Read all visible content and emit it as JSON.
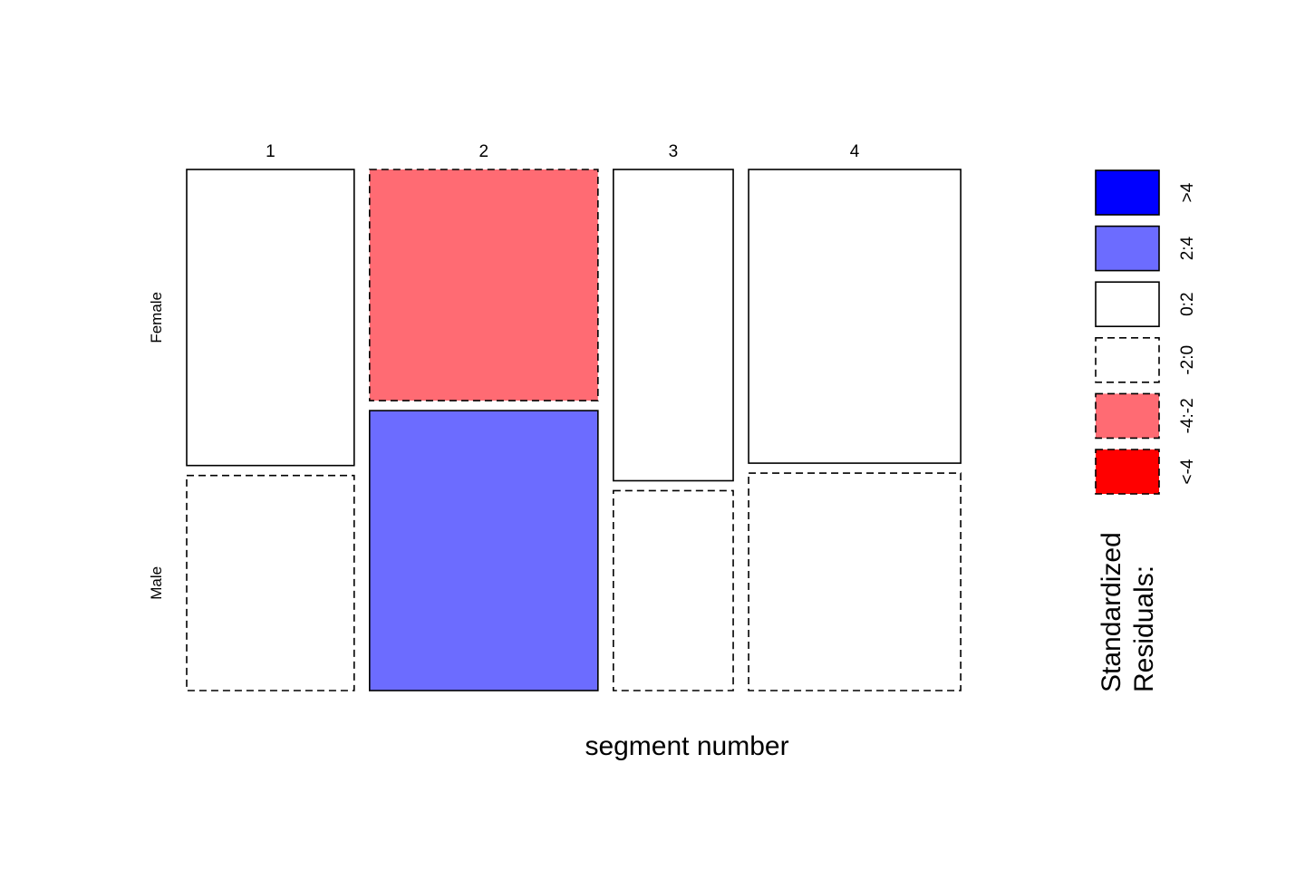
{
  "chart_data": {
    "type": "mosaic",
    "xlabel": "segment number",
    "categories": [
      "1",
      "2",
      "3",
      "4"
    ],
    "rows": [
      "Female",
      "Male"
    ],
    "column_proportions": [
      0.2169,
      0.2958,
      0.1552,
      0.2747
    ],
    "female_share": [
      0.5792,
      0.4523,
      0.609,
      0.5746
    ],
    "residual_class": [
      [
        "0:2",
        "-2:0"
      ],
      [
        "-4:-2",
        "2:4"
      ],
      [
        "0:2",
        "-2:0"
      ],
      [
        "0:2",
        "-2:0"
      ]
    ],
    "legend": {
      "title_line1": "Standardized",
      "title_line2": "Residuals:",
      "items": [
        {
          "label": ">4",
          "color": "#0000ff",
          "dashed": false
        },
        {
          "label": "2:4",
          "color": "#6c6cff",
          "dashed": false
        },
        {
          "label": "0:2",
          "color": "#ffffff",
          "dashed": false
        },
        {
          "label": "-2:0",
          "color": "#ffffff",
          "dashed": true
        },
        {
          "label": "-4:-2",
          "color": "#ff6b73",
          "dashed": true
        },
        {
          "label": "<-4",
          "color": "#ff0000",
          "dashed": true
        }
      ]
    }
  }
}
